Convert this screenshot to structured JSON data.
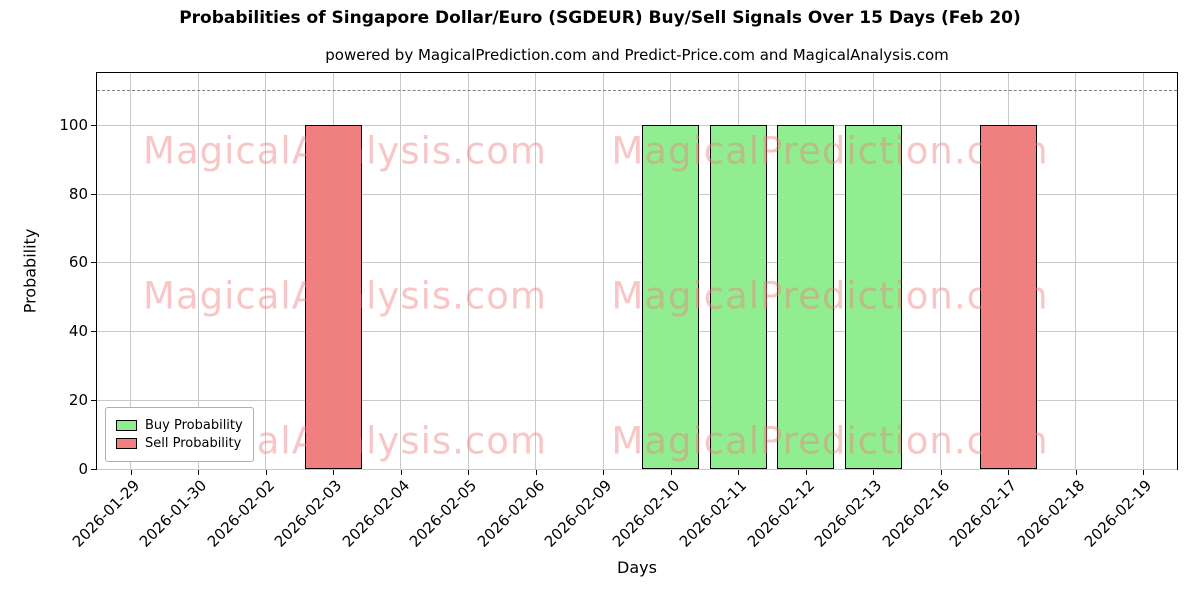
{
  "chart_data": {
    "type": "bar",
    "title": "Probabilities of Singapore Dollar/Euro (SGDEUR) Buy/Sell Signals Over 15 Days (Feb 20)",
    "subtitle": "powered by MagicalPrediction.com and Predict-Price.com and MagicalAnalysis.com",
    "xlabel": "Days",
    "ylabel": "Probability",
    "ylim": [
      0,
      115
    ],
    "yticks": [
      0,
      20,
      40,
      60,
      80,
      100
    ],
    "dashed_line_y": 110,
    "grid": true,
    "legend_position": "lower left",
    "categories": [
      "2026-01-29",
      "2026-01-30",
      "2026-02-02",
      "2026-02-03",
      "2026-02-04",
      "2026-02-05",
      "2026-02-06",
      "2026-02-09",
      "2026-02-10",
      "2026-02-11",
      "2026-02-12",
      "2026-02-13",
      "2026-02-16",
      "2026-02-17",
      "2026-02-18",
      "2026-02-19"
    ],
    "series": [
      {
        "name": "Buy Probability",
        "color": "#90EE90",
        "values": [
          0,
          0,
          0,
          0,
          0,
          0,
          0,
          0,
          100,
          100,
          100,
          100,
          0,
          0,
          0,
          0
        ]
      },
      {
        "name": "Sell Probability",
        "color": "#F08080",
        "values": [
          0,
          0,
          0,
          100,
          0,
          0,
          0,
          0,
          0,
          0,
          0,
          0,
          0,
          100,
          0,
          0
        ]
      }
    ],
    "bar_edge_color": "#000000",
    "watermarks": {
      "left": "MagicalAnalysis.com",
      "right": "MagicalPrediction.com"
    }
  }
}
